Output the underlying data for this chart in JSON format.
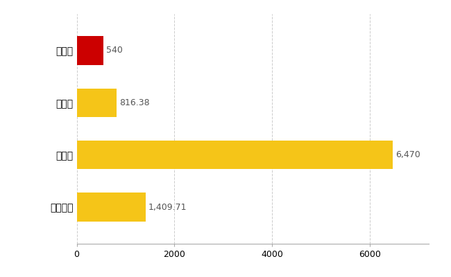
{
  "categories": [
    "藤崎町",
    "県平均",
    "県最大",
    "全国平均"
  ],
  "values": [
    540,
    816.38,
    6470,
    1409.71
  ],
  "labels": [
    "540",
    "816.38",
    "6,470",
    "1,409.71"
  ],
  "bar_colors": [
    "#cc0000",
    "#f5c518",
    "#f5c518",
    "#f5c518"
  ],
  "xlim": [
    0,
    7200
  ],
  "xticks": [
    0,
    2000,
    4000,
    6000
  ],
  "background_color": "#ffffff",
  "grid_color": "#cccccc",
  "label_color": "#555555",
  "label_fontsize": 9,
  "tick_fontsize": 9,
  "ytick_fontsize": 10,
  "bar_height": 0.55
}
